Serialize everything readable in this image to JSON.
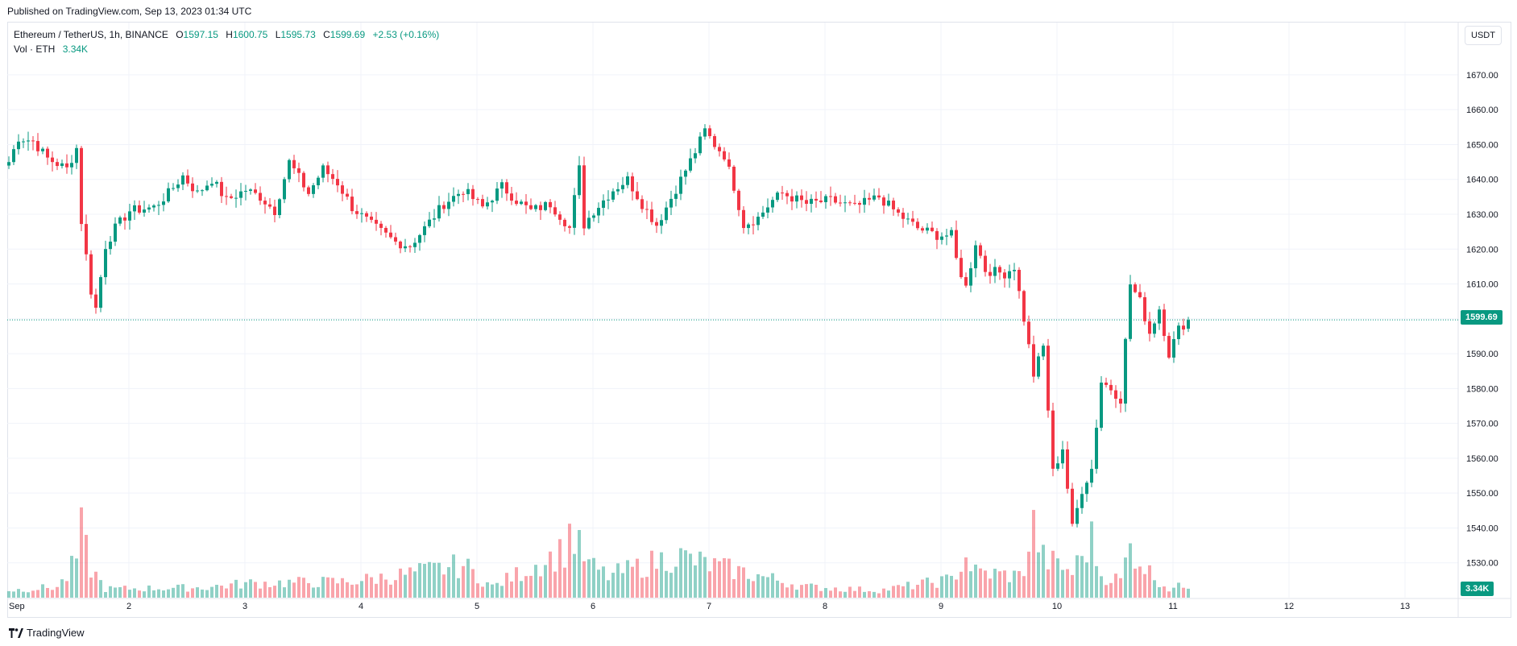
{
  "header": {
    "published": "Published on TradingView.com, Sep 13, 2023 01:34 UTC"
  },
  "legend": {
    "symbol": "Ethereum / TetherUS, 1h, BINANCE",
    "open_label": "O",
    "open": "1597.15",
    "high_label": "H",
    "high": "1600.75",
    "low_label": "L",
    "low": "1595.73",
    "close_label": "C",
    "close": "1599.69",
    "change": "+2.53 (+0.16%)",
    "vol_label": "Vol · ETH",
    "vol_value": "3.34K"
  },
  "currency_button": "USDT",
  "last_price_tag": "1599.69",
  "last_volume_tag": "3.34K",
  "footer": {
    "brand": "TradingView"
  },
  "colors": {
    "up": "#089981",
    "down": "#f23645",
    "grid": "#f0f3fa",
    "axis_text": "#131722"
  },
  "chart_data": {
    "type": "candlestick",
    "title": "Ethereum / TetherUS, 1h, BINANCE",
    "ylim": [
      1520,
      1685
    ],
    "y_ticks": [
      1530,
      1540,
      1550,
      1560,
      1570,
      1580,
      1590,
      1600,
      1610,
      1620,
      1630,
      1640,
      1650,
      1660,
      1670
    ],
    "y_tick_labels": [
      "1530.00",
      "1540.00",
      "1550.00",
      "1560.00",
      "1570.00",
      "1580.00",
      "1590.00",
      "1600.00",
      "1610.00",
      "1620.00",
      "1630.00",
      "1640.00",
      "1650.00",
      "1660.00",
      "1670.00"
    ],
    "x_labels": [
      "Sep",
      "2",
      "3",
      "4",
      "5",
      "6",
      "7",
      "8",
      "9",
      "10",
      "11",
      "12",
      "13"
    ],
    "last_price": 1599.69,
    "grid": true,
    "anchors": [
      [
        0,
        1645
      ],
      [
        2,
        1652
      ],
      [
        5,
        1651
      ],
      [
        8,
        1646
      ],
      [
        12,
        1643
      ],
      [
        14,
        1649
      ],
      [
        15,
        1628
      ],
      [
        17,
        1608
      ],
      [
        18,
        1603
      ],
      [
        20,
        1621
      ],
      [
        22,
        1626
      ],
      [
        25,
        1631
      ],
      [
        30,
        1632
      ],
      [
        33,
        1636
      ],
      [
        36,
        1641
      ],
      [
        39,
        1636
      ],
      [
        42,
        1640
      ],
      [
        45,
        1634
      ],
      [
        49,
        1637
      ],
      [
        52,
        1635
      ],
      [
        55,
        1631
      ],
      [
        58,
        1645
      ],
      [
        62,
        1636
      ],
      [
        65,
        1643
      ],
      [
        68,
        1639
      ],
      [
        71,
        1632
      ],
      [
        75,
        1627
      ],
      [
        80,
        1622
      ],
      [
        83,
        1621
      ],
      [
        86,
        1626
      ],
      [
        90,
        1633
      ],
      [
        94,
        1637
      ],
      [
        98,
        1632
      ],
      [
        102,
        1638
      ],
      [
        105,
        1634
      ],
      [
        108,
        1631
      ],
      [
        112,
        1633
      ],
      [
        115,
        1628
      ],
      [
        116,
        1626
      ],
      [
        118,
        1643
      ],
      [
        119,
        1627
      ],
      [
        121,
        1631
      ],
      [
        125,
        1637
      ],
      [
        128,
        1640
      ],
      [
        131,
        1633
      ],
      [
        134,
        1627
      ],
      [
        136,
        1632
      ],
      [
        139,
        1640
      ],
      [
        142,
        1648
      ],
      [
        144,
        1654
      ],
      [
        146,
        1650
      ],
      [
        148,
        1647
      ],
      [
        150,
        1638
      ],
      [
        152,
        1627
      ],
      [
        155,
        1629
      ],
      [
        158,
        1634
      ],
      [
        160,
        1636
      ],
      [
        165,
        1633
      ],
      [
        170,
        1634
      ],
      [
        175,
        1632
      ],
      [
        180,
        1635
      ],
      [
        184,
        1630
      ],
      [
        188,
        1626
      ],
      [
        192,
        1624
      ],
      [
        195,
        1624
      ],
      [
        196,
        1617
      ],
      [
        198,
        1609
      ],
      [
        200,
        1622
      ],
      [
        202,
        1614
      ],
      [
        206,
        1613
      ],
      [
        208,
        1615
      ],
      [
        210,
        1600
      ],
      [
        212,
        1584
      ],
      [
        214,
        1592
      ],
      [
        216,
        1556
      ],
      [
        218,
        1563
      ],
      [
        220,
        1540
      ],
      [
        222,
        1551
      ],
      [
        224,
        1557
      ],
      [
        226,
        1582
      ],
      [
        228,
        1580
      ],
      [
        230,
        1577
      ],
      [
        232,
        1610
      ],
      [
        234,
        1605
      ],
      [
        236,
        1596
      ],
      [
        238,
        1603
      ],
      [
        240,
        1590
      ],
      [
        242,
        1597
      ],
      [
        244,
        1599.69
      ]
    ],
    "volume_anchors": [
      [
        0,
        10
      ],
      [
        10,
        15
      ],
      [
        12,
        28
      ],
      [
        14,
        55
      ],
      [
        15,
        90
      ],
      [
        17,
        40
      ],
      [
        20,
        12
      ],
      [
        40,
        14
      ],
      [
        50,
        20
      ],
      [
        70,
        22
      ],
      [
        80,
        30
      ],
      [
        94,
        45
      ],
      [
        100,
        15
      ],
      [
        115,
        65
      ],
      [
        116,
        90
      ],
      [
        120,
        45
      ],
      [
        124,
        30
      ],
      [
        138,
        58
      ],
      [
        145,
        45
      ],
      [
        150,
        38
      ],
      [
        165,
        15
      ],
      [
        180,
        10
      ],
      [
        195,
        25
      ],
      [
        198,
        55
      ],
      [
        200,
        35
      ],
      [
        209,
        30
      ],
      [
        210,
        42
      ],
      [
        212,
        98
      ],
      [
        214,
        55
      ],
      [
        216,
        48
      ],
      [
        220,
        35
      ],
      [
        224,
        80
      ],
      [
        226,
        30
      ],
      [
        230,
        25
      ],
      [
        232,
        70
      ],
      [
        236,
        35
      ],
      [
        240,
        12
      ],
      [
        244,
        18
      ]
    ]
  }
}
